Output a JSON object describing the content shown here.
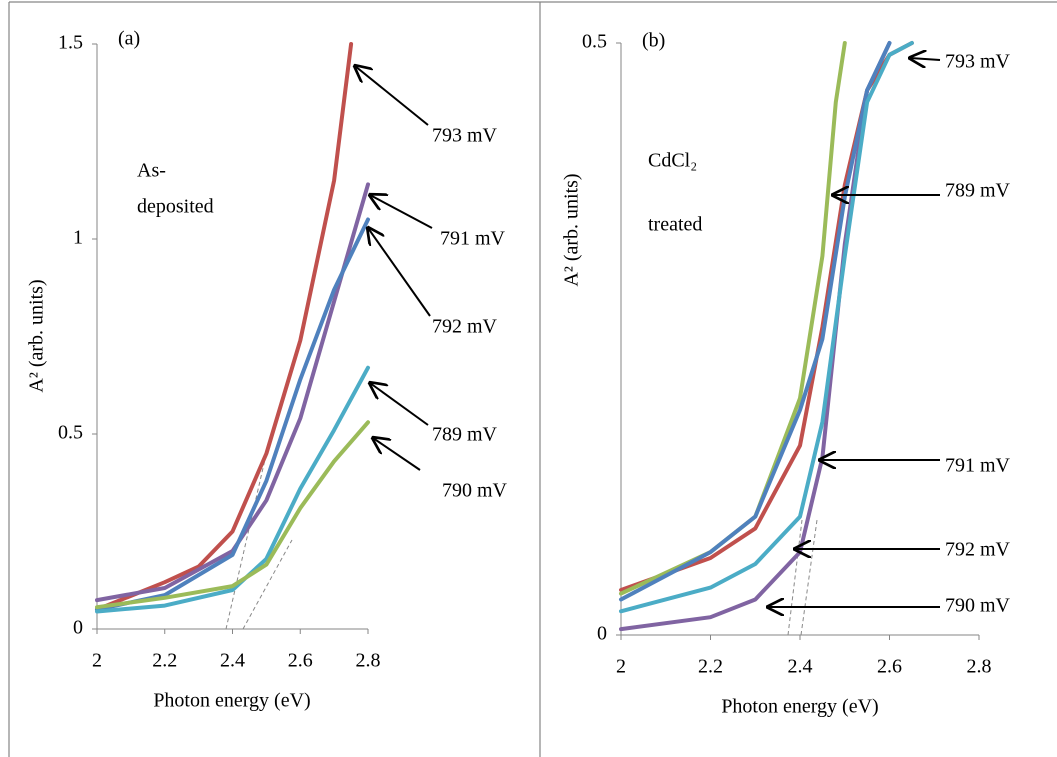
{
  "chart_data": [
    {
      "type": "line",
      "panel_label": "(a)",
      "note": [
        "As-",
        "deposited"
      ],
      "x_label": "Photon energy (eV)",
      "y_label": "A² (arb. units)",
      "xlim": [
        2,
        2.8
      ],
      "ylim": [
        0,
        1.5
      ],
      "xticks": [
        2,
        2.2,
        2.4,
        2.6,
        2.8
      ],
      "yticks": [
        0,
        0.5,
        1,
        1.5
      ],
      "series": [
        {
          "name": "793 mV",
          "color": "#c0504d",
          "x": [
            2,
            2.2,
            2.3,
            2.4,
            2.5,
            2.6,
            2.7,
            2.75
          ],
          "values": [
            0.05,
            0.12,
            0.16,
            0.25,
            0.45,
            0.74,
            1.15,
            1.5
          ]
        },
        {
          "name": "791 mV",
          "color": "#8064a2",
          "x": [
            2,
            2.2,
            2.4,
            2.5,
            2.6,
            2.7,
            2.8
          ],
          "values": [
            0.074,
            0.105,
            0.2,
            0.33,
            0.54,
            0.84,
            1.14
          ]
        },
        {
          "name": "792 mV",
          "color": "#4f81bd",
          "x": [
            2,
            2.2,
            2.4,
            2.5,
            2.6,
            2.7,
            2.8
          ],
          "values": [
            0.05,
            0.087,
            0.19,
            0.38,
            0.64,
            0.87,
            1.05
          ]
        },
        {
          "name": "789 mV",
          "color": "#4bacc6",
          "x": [
            2,
            2.2,
            2.4,
            2.5,
            2.6,
            2.7,
            2.8
          ],
          "values": [
            0.045,
            0.06,
            0.1,
            0.18,
            0.36,
            0.51,
            0.67
          ]
        },
        {
          "name": "790 mV",
          "color": "#9bbb59",
          "x": [
            2,
            2.2,
            2.4,
            2.5,
            2.6,
            2.7,
            2.8
          ],
          "values": [
            0.056,
            0.08,
            0.11,
            0.165,
            0.31,
            0.43,
            0.53
          ]
        }
      ]
    },
    {
      "type": "line",
      "panel_label": "(b)",
      "note": [
        "CdCl₂",
        "treated"
      ],
      "x_label": "Photon energy (eV)",
      "y_label": "A² (arb. units)",
      "xlim": [
        2,
        2.8
      ],
      "ylim": [
        0,
        0.5
      ],
      "xticks": [
        2,
        2.2,
        2.4,
        2.6,
        2.8
      ],
      "yticks": [
        0,
        0.5
      ],
      "series": [
        {
          "name": "793 mV",
          "color": "#c0504d",
          "x": [
            2,
            2.2,
            2.3,
            2.4,
            2.45,
            2.5,
            2.55,
            2.6,
            2.65
          ],
          "values": [
            0.038,
            0.065,
            0.09,
            0.16,
            0.26,
            0.38,
            0.46,
            0.49,
            0.5
          ]
        },
        {
          "name": "789 mV",
          "color": "#9bbb59",
          "x": [
            2,
            2.2,
            2.3,
            2.4,
            2.45,
            2.48,
            2.5
          ],
          "values": [
            0.035,
            0.07,
            0.1,
            0.2,
            0.32,
            0.45,
            0.5
          ]
        },
        {
          "name": "791 mV",
          "color": "#8064a2",
          "x": [
            2,
            2.2,
            2.3,
            2.4,
            2.45,
            2.5,
            2.55,
            2.6
          ],
          "values": [
            0.005,
            0.015,
            0.03,
            0.07,
            0.15,
            0.33,
            0.46,
            0.5
          ]
        },
        {
          "name": "792 mV",
          "color": "#4f81bd",
          "x": [
            2,
            2.2,
            2.3,
            2.4,
            2.45,
            2.5,
            2.55,
            2.6
          ],
          "values": [
            0.03,
            0.07,
            0.1,
            0.19,
            0.25,
            0.37,
            0.46,
            0.5
          ]
        },
        {
          "name": "790 mV",
          "color": "#4bacc6",
          "x": [
            2,
            2.2,
            2.3,
            2.4,
            2.45,
            2.5,
            2.55,
            2.6,
            2.65
          ],
          "values": [
            0.02,
            0.04,
            0.06,
            0.1,
            0.18,
            0.32,
            0.45,
            0.49,
            0.5
          ]
        }
      ]
    }
  ]
}
